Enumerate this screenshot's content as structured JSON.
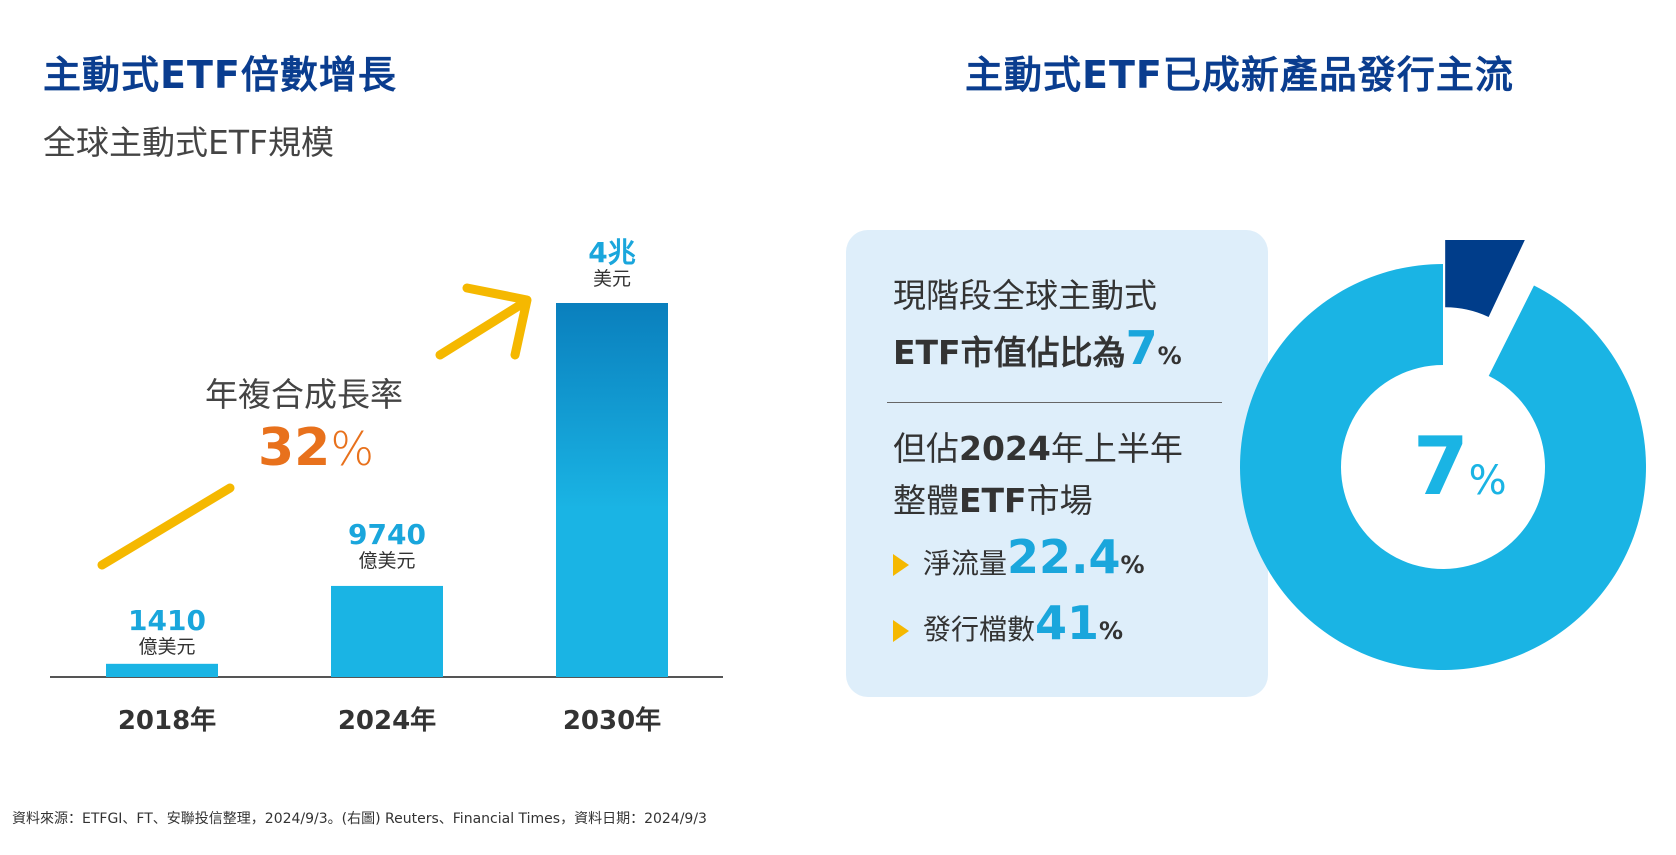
{
  "left": {
    "title": "主動式ETF倍數增長",
    "subtitle": "全球主動式ETF規模",
    "cagr_label": "年複合成長率",
    "cagr_value": "32",
    "cagr_unit": "%"
  },
  "right": {
    "title": "主動式ETF已成新產品發行主流",
    "panel": {
      "line1": "現階段全球主動式",
      "line2_prefix": "ETF市值佔比為",
      "line2_value": "7",
      "line2_unit": "%",
      "line3_a": "但佔",
      "line3_b": "2024",
      "line3_c": "年上半年",
      "line4_a": "整體",
      "line4_b": "ETF",
      "line4_c": "市場",
      "item1_label": "淨流量",
      "item1_value": "22.4",
      "item1_unit": "%",
      "item2_label": "發行檔數",
      "item2_value": "41",
      "item2_unit": "%"
    }
  },
  "footnote": "資料來源：ETFGI、FT、安聯投信整理，2024/9/3。(右圖) Reuters、Financial Times，資料日期：2024/9/3",
  "colors": {
    "title": "#0a3d8f",
    "bar": "#1ab4e4",
    "accent_orange": "#e8711c",
    "arrow": "#f5b800",
    "donut_main": "#1ab4e4",
    "donut_slice": "#003d8a",
    "panel_bg": "#deeefa"
  },
  "chart_data": [
    {
      "type": "bar",
      "categories": [
        "2018年",
        "2024年",
        "2030年"
      ],
      "values": [
        1410,
        9740,
        40000
      ],
      "value_labels": [
        {
          "value": "1410",
          "unit": "億美元"
        },
        {
          "value": "9740",
          "unit": "億美元"
        },
        {
          "value": "4兆",
          "unit": "美元"
        }
      ],
      "unit": "億美元",
      "title": "全球主動式ETF規模"
    },
    {
      "type": "pie",
      "style": "donut",
      "slices": [
        {
          "value": 7,
          "color": "#003d8a",
          "exploded": true
        },
        {
          "value": 93,
          "color": "#1ab4e4"
        }
      ],
      "center_label": {
        "value": "7",
        "unit": "%"
      }
    }
  ]
}
